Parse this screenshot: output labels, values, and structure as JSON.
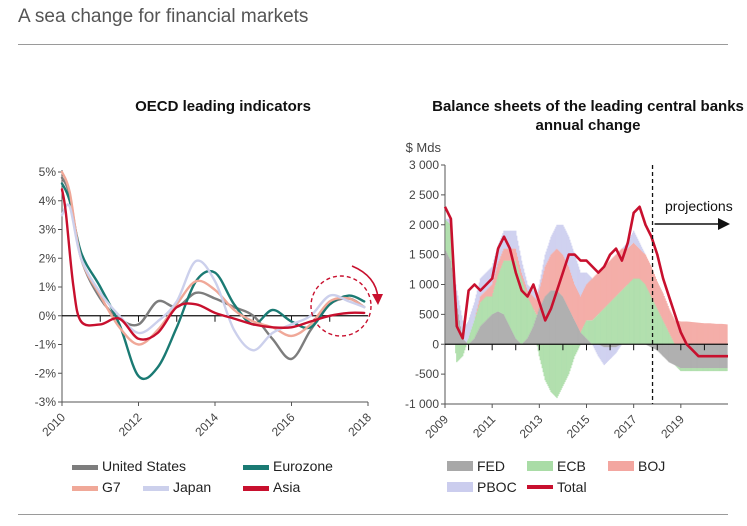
{
  "page": {
    "title": "A sea change for financial markets"
  },
  "chart_data": [
    {
      "type": "line",
      "title": "OECD leading indicators",
      "xlabel": "",
      "ylabel": "",
      "xlim": [
        2010,
        2018
      ],
      "ylim": [
        -3,
        5
      ],
      "x_ticks": [
        "2010",
        "2012",
        "2014",
        "2016",
        "2018"
      ],
      "y_ticks": [
        "5%",
        "4%",
        "3%",
        "2%",
        "1%",
        "0%",
        "-1%",
        "-2%",
        "-3%"
      ],
      "annotation": "dashed circle with arrow around late-2017 values",
      "series": [
        {
          "name": "United States",
          "color": "#7d7d7d",
          "x": [
            2010,
            2010.2,
            2010.5,
            2011,
            2011.5,
            2012,
            2012.5,
            2013,
            2013.5,
            2014,
            2014.5,
            2015,
            2015.5,
            2016,
            2016.5,
            2017,
            2017.5,
            2017.9
          ],
          "y": [
            4.8,
            4.2,
            2.0,
            0.6,
            -0.1,
            -0.3,
            0.5,
            0.3,
            0.8,
            0.6,
            0.3,
            0.0,
            -0.8,
            -1.5,
            -0.5,
            0.4,
            0.6,
            0.3
          ]
        },
        {
          "name": "Eurozone",
          "color": "#1a7a73",
          "x": [
            2010,
            2010.2,
            2010.5,
            2011,
            2011.5,
            2012,
            2012.5,
            2013,
            2013.5,
            2014,
            2014.5,
            2015,
            2015.5,
            2016,
            2016.5,
            2017,
            2017.5,
            2017.9
          ],
          "y": [
            4.6,
            4.0,
            2.2,
            1.0,
            -0.3,
            -2.1,
            -1.8,
            -0.4,
            1.2,
            1.5,
            0.4,
            -0.3,
            0.2,
            -0.2,
            -0.4,
            0.4,
            0.7,
            0.5
          ]
        },
        {
          "name": "G7",
          "color": "#f0a898",
          "x": [
            2010,
            2010.2,
            2010.5,
            2011,
            2011.5,
            2012,
            2012.5,
            2013,
            2013.5,
            2014,
            2014.5,
            2015,
            2015.5,
            2016,
            2016.5,
            2017,
            2017.5,
            2017.9
          ],
          "y": [
            5.0,
            4.3,
            2.0,
            0.7,
            -0.4,
            -1.0,
            -0.5,
            0.4,
            1.2,
            0.9,
            0.2,
            -0.2,
            -0.4,
            -0.7,
            -0.3,
            0.5,
            0.6,
            0.3
          ]
        },
        {
          "name": "Japan",
          "color": "#ccd0ec",
          "x": [
            2010,
            2010.2,
            2010.5,
            2011,
            2011.5,
            2012,
            2012.5,
            2013,
            2013.5,
            2014,
            2014.5,
            2015,
            2015.5,
            2016,
            2016.5,
            2017,
            2017.5,
            2017.9
          ],
          "y": [
            3.5,
            3.8,
            2.0,
            0.8,
            0.0,
            -0.6,
            -0.2,
            0.5,
            1.9,
            1.2,
            -0.5,
            -1.2,
            -0.6,
            -0.3,
            0.0,
            0.7,
            0.5,
            0.3
          ]
        },
        {
          "name": "Asia",
          "color": "#c8102e",
          "x": [
            2010,
            2010.1,
            2010.3,
            2010.5,
            2011,
            2011.5,
            2012,
            2012.5,
            2013,
            2013.5,
            2014,
            2014.5,
            2015,
            2015.5,
            2016,
            2016.5,
            2017,
            2017.5,
            2017.9
          ],
          "y": [
            4.4,
            3.6,
            1.0,
            -0.2,
            -0.3,
            -0.1,
            -0.8,
            -0.6,
            0.3,
            0.4,
            0.1,
            -0.1,
            -0.3,
            -0.4,
            -0.4,
            -0.2,
            0.0,
            0.1,
            0.1
          ]
        }
      ]
    },
    {
      "type": "area",
      "title": "Balance sheets of the leading central banks, annual change",
      "ylabel": "$ Mds",
      "xlim": [
        2009,
        2021
      ],
      "ylim": [
        -1000,
        3000
      ],
      "x_ticks": [
        "2009",
        "2011",
        "2013",
        "2015",
        "2017",
        "2019"
      ],
      "y_ticks": [
        "3 000",
        "2 500",
        "2 000",
        "1 500",
        "1 000",
        "500",
        "0",
        "-500",
        "-1 000"
      ],
      "projection_start": 2017.8,
      "projection_label": "projections",
      "series": [
        {
          "name": "FED",
          "color": "#a8a8a8"
        },
        {
          "name": "ECB",
          "color": "#a9dca6"
        },
        {
          "name": "BOJ",
          "color": "#f3a6a0"
        },
        {
          "name": "PBOC",
          "color": "#cbcdee"
        },
        {
          "name": "Total",
          "color": "#c8102e"
        }
      ],
      "data": {
        "x": [
          2009.0,
          2009.25,
          2009.5,
          2009.75,
          2010.0,
          2010.25,
          2010.5,
          2010.75,
          2011.0,
          2011.25,
          2011.5,
          2011.75,
          2012.0,
          2012.25,
          2012.5,
          2012.75,
          2013.0,
          2013.25,
          2013.5,
          2013.75,
          2014.0,
          2014.25,
          2014.5,
          2014.75,
          2015.0,
          2015.25,
          2015.5,
          2015.75,
          2016.0,
          2016.25,
          2016.5,
          2016.75,
          2017.0,
          2017.25,
          2017.5,
          2017.75,
          2018.0,
          2018.25,
          2018.5,
          2018.75,
          2019.0,
          2019.25,
          2019.5,
          2019.75,
          2020.0,
          2020.25,
          2020.5,
          2020.75,
          2021.0
        ],
        "fed": [
          1600,
          1400,
          700,
          100,
          0,
          100,
          300,
          400,
          500,
          550,
          500,
          300,
          100,
          0,
          100,
          300,
          600,
          800,
          900,
          900,
          800,
          600,
          400,
          200,
          100,
          0,
          0,
          -50,
          -50,
          -50,
          0,
          0,
          0,
          0,
          0,
          -50,
          -100,
          -200,
          -300,
          -350,
          -400,
          -400,
          -400,
          -400,
          -400,
          -400,
          -400,
          -400,
          -400
        ],
        "ecb": [
          500,
          600,
          -300,
          -200,
          100,
          300,
          400,
          400,
          300,
          600,
          900,
          1100,
          1300,
          1100,
          700,
          300,
          -200,
          -600,
          -800,
          -900,
          -700,
          -500,
          -200,
          0,
          300,
          400,
          500,
          600,
          700,
          800,
          900,
          1000,
          1100,
          1100,
          1000,
          800,
          600,
          400,
          200,
          0,
          -50,
          -50,
          -50,
          -50,
          -50,
          -50,
          -50,
          -50,
          -50
        ],
        "boj": [
          0,
          0,
          0,
          0,
          0,
          0,
          100,
          100,
          200,
          200,
          200,
          200,
          200,
          100,
          100,
          200,
          300,
          500,
          600,
          700,
          700,
          700,
          600,
          600,
          600,
          700,
          700,
          700,
          700,
          700,
          700,
          600,
          600,
          500,
          500,
          500,
          450,
          450,
          400,
          400,
          380,
          380,
          370,
          360,
          350,
          350,
          340,
          340,
          330
        ],
        "pboc": [
          0,
          100,
          200,
          300,
          300,
          300,
          300,
          300,
          300,
          300,
          300,
          300,
          300,
          200,
          100,
          100,
          100,
          200,
          300,
          400,
          500,
          500,
          500,
          400,
          200,
          0,
          -200,
          -300,
          -200,
          -100,
          0,
          100,
          200,
          100,
          0,
          0,
          0,
          0,
          0,
          0,
          0,
          0,
          0,
          0,
          0,
          0,
          0,
          0,
          0
        ],
        "total": [
          2300,
          2100,
          300,
          100,
          900,
          1000,
          900,
          1000,
          1100,
          1600,
          1800,
          1600,
          1200,
          900,
          800,
          1000,
          700,
          400,
          600,
          900,
          1200,
          1500,
          1500,
          1400,
          1400,
          1300,
          1200,
          1300,
          1500,
          1600,
          1400,
          1700,
          2200,
          2300,
          2000,
          1800,
          1500,
          1100,
          800,
          500,
          200,
          0,
          -100,
          -200,
          -200,
          -200,
          -200,
          -200,
          -200
        ]
      }
    }
  ]
}
